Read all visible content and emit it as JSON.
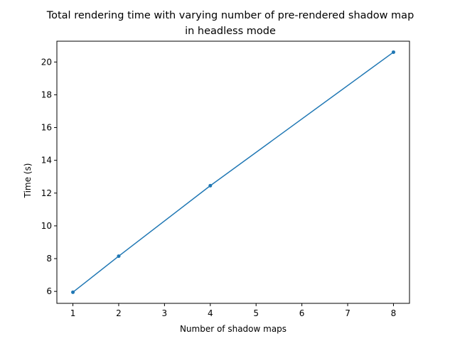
{
  "chart_data": {
    "type": "line",
    "title": [
      "Total rendering time with varying number of pre-rendered shadow map",
      "in headless mode"
    ],
    "xlabel": "Number of shadow maps",
    "ylabel": "Time (s)",
    "xlim": [
      0.65,
      8.35
    ],
    "ylim": [
      5.27,
      21.27
    ],
    "xticks": [
      1,
      2,
      3,
      4,
      5,
      6,
      7,
      8
    ],
    "yticks": [
      6,
      8,
      10,
      12,
      14,
      16,
      18,
      20
    ],
    "grid": false,
    "series": [
      {
        "color": "#1f77b4",
        "marker": "circle",
        "x": [
          1,
          2,
          4,
          8
        ],
        "y": [
          5.95,
          8.15,
          12.45,
          20.6
        ]
      }
    ]
  }
}
